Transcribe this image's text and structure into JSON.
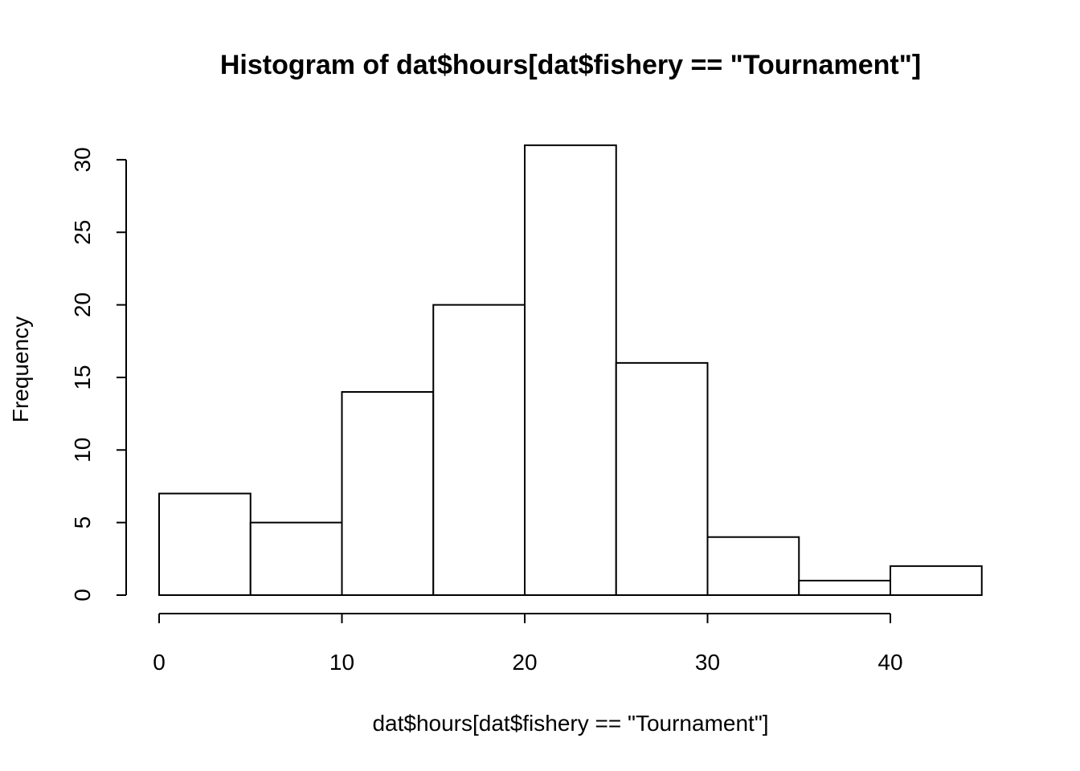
{
  "chart_data": {
    "type": "bar",
    "title": "Histogram of dat$hours[dat$fishery == \"Tournament\"]",
    "xlabel": "dat$hours[dat$fishery == \"Tournament\"]",
    "ylabel": "Frequency",
    "bins": [
      {
        "start": 0,
        "end": 5,
        "value": 7
      },
      {
        "start": 5,
        "end": 10,
        "value": 5
      },
      {
        "start": 10,
        "end": 15,
        "value": 14
      },
      {
        "start": 15,
        "end": 20,
        "value": 20
      },
      {
        "start": 20,
        "end": 25,
        "value": 31
      },
      {
        "start": 25,
        "end": 30,
        "value": 16
      },
      {
        "start": 30,
        "end": 35,
        "value": 4
      },
      {
        "start": 35,
        "end": 40,
        "value": 1
      },
      {
        "start": 40,
        "end": 45,
        "value": 2
      }
    ],
    "xlim": [
      0,
      45
    ],
    "ylim": [
      0,
      31
    ],
    "x_ticks": [
      "0",
      "10",
      "20",
      "30",
      "40"
    ],
    "y_ticks": [
      "0",
      "5",
      "10",
      "15",
      "20",
      "25",
      "30"
    ],
    "grid": false,
    "colors": {
      "bar_fill": "#ffffff",
      "bar_stroke": "#000000"
    }
  }
}
